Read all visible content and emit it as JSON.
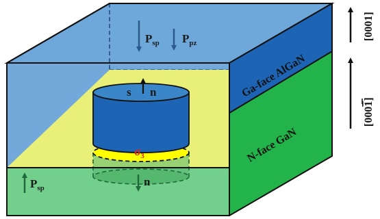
{
  "colors": {
    "algan_front": "#72a9da",
    "algan_top": "#6ea7d9",
    "algan_right": "#1e64b4",
    "gan_front": "#72cf8c",
    "gan_right": "#22b34a",
    "interface": "#e9f07a",
    "cylinder_top": "#3a86c8",
    "cylinder_mid": "#1e64b4",
    "sigma_disc": "#ffff00",
    "sigma_text": "#e0241b",
    "arrow_blue": "#2a5a8c",
    "arrow_green": "#1f6a3a"
  },
  "labels": {
    "psp_top": {
      "main": "P",
      "sub": "sp"
    },
    "ppz_top": {
      "main": "P",
      "sub": "pz"
    },
    "psp_bottom": {
      "main": "P",
      "sub": "sp"
    },
    "s_label": "s",
    "n_top": "n",
    "n_bottom": "n",
    "sigma": {
      "main": "σ",
      "sub": "3"
    },
    "algan_face": "Ga-face AlGaN",
    "gan_face": "N-face GaN",
    "dir_up": "[0001]",
    "dir_down": "[000̅ 1]"
  },
  "directions": {
    "upper": {
      "text_parts": [
        "[000",
        "1",
        "]"
      ],
      "overbar": false
    },
    "lower": {
      "text_parts": [
        "[000",
        "1",
        "]"
      ],
      "overbar": true
    }
  }
}
